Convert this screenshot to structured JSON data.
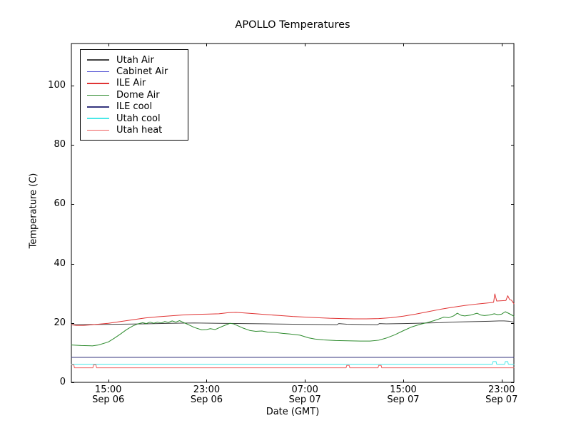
{
  "chart_data": {
    "type": "line",
    "title": "APOLLO Temperatures",
    "xlabel": "Date (GMT)",
    "ylabel": "Temperature (C)",
    "grid": false,
    "legend_position": "upper left",
    "background_color": "#ffffff",
    "axis_color": "#000000",
    "xlim_hours": [
      0,
      36
    ],
    "ylim": [
      0,
      114.2
    ],
    "yticks": [
      0,
      20,
      40,
      60,
      80,
      100
    ],
    "xticks": [
      {
        "hour": 3,
        "time": "15:00",
        "date": "Sep 06"
      },
      {
        "hour": 11,
        "time": "23:00",
        "date": "Sep 06"
      },
      {
        "hour": 19,
        "time": "07:00",
        "date": "Sep 07"
      },
      {
        "hour": 27,
        "time": "15:00",
        "date": "Sep 07"
      },
      {
        "hour": 35,
        "time": "23:00",
        "date": "Sep 07"
      }
    ],
    "x_axis_note": "x values are hours; hour 3 = 15:00 Sep 06 GMT, 8 hours between labeled ticks",
    "series": [
      {
        "name": "Utah Air",
        "color": "#404040",
        "points": [
          [
            0,
            19.4
          ],
          [
            2,
            19.5
          ],
          [
            4,
            19.6
          ],
          [
            6,
            19.7
          ],
          [
            8,
            19.9
          ],
          [
            10,
            20.0
          ],
          [
            12,
            19.9
          ],
          [
            14,
            19.8
          ],
          [
            16,
            19.7
          ],
          [
            18,
            19.6
          ],
          [
            20,
            19.5
          ],
          [
            21.6,
            19.4
          ],
          [
            21.75,
            19.8
          ],
          [
            22.4,
            19.6
          ],
          [
            23.5,
            19.5
          ],
          [
            24.9,
            19.4
          ],
          [
            25.05,
            19.8
          ],
          [
            25.6,
            19.7
          ],
          [
            27,
            19.8
          ],
          [
            28,
            19.9
          ],
          [
            29,
            20.0
          ],
          [
            30,
            20.1
          ],
          [
            31,
            20.3
          ],
          [
            32,
            20.4
          ],
          [
            33,
            20.5
          ],
          [
            34,
            20.6
          ],
          [
            34.8,
            20.7
          ],
          [
            35.2,
            20.7
          ],
          [
            35.6,
            20.6
          ],
          [
            36,
            20.3
          ]
        ]
      },
      {
        "name": "Cabinet Air",
        "color": "#4a4ad2",
        "points": [
          [
            0,
            8.4
          ],
          [
            36,
            8.4
          ]
        ]
      },
      {
        "name": "ILE Air",
        "color": "#e03434",
        "points": [
          [
            0,
            19.4
          ],
          [
            0.4,
            19.2
          ],
          [
            1,
            19.2
          ],
          [
            1.7,
            19.4
          ],
          [
            2.5,
            19.7
          ],
          [
            3,
            19.9
          ],
          [
            4,
            20.5
          ],
          [
            5,
            21.1
          ],
          [
            6,
            21.7
          ],
          [
            7,
            22.1
          ],
          [
            8,
            22.4
          ],
          [
            9,
            22.7
          ],
          [
            10,
            22.9
          ],
          [
            11,
            23.0
          ],
          [
            12,
            23.1
          ],
          [
            12.8,
            23.5
          ],
          [
            13.4,
            23.6
          ],
          [
            14,
            23.4
          ],
          [
            15,
            23.1
          ],
          [
            16,
            22.8
          ],
          [
            17,
            22.5
          ],
          [
            18,
            22.2
          ],
          [
            19,
            22.0
          ],
          [
            20,
            21.8
          ],
          [
            21,
            21.6
          ],
          [
            22,
            21.5
          ],
          [
            23,
            21.4
          ],
          [
            24,
            21.4
          ],
          [
            25,
            21.5
          ],
          [
            26,
            21.8
          ],
          [
            27,
            22.3
          ],
          [
            28,
            23.0
          ],
          [
            29,
            23.8
          ],
          [
            30,
            24.6
          ],
          [
            31,
            25.3
          ],
          [
            32,
            25.9
          ],
          [
            33,
            26.4
          ],
          [
            34,
            26.8
          ],
          [
            34.35,
            27.0
          ],
          [
            34.45,
            29.8
          ],
          [
            34.6,
            27.4
          ],
          [
            35,
            27.5
          ],
          [
            35.35,
            27.6
          ],
          [
            35.5,
            29.2
          ],
          [
            35.65,
            27.9
          ],
          [
            35.8,
            27.7
          ],
          [
            36,
            26.5
          ]
        ]
      },
      {
        "name": "Dome Air",
        "color": "#2e8b2e",
        "points": [
          [
            0,
            12.6
          ],
          [
            0.8,
            12.4
          ],
          [
            1.7,
            12.3
          ],
          [
            2.2,
            12.6
          ],
          [
            3,
            13.6
          ],
          [
            3.5,
            14.9
          ],
          [
            4,
            16.3
          ],
          [
            4.5,
            17.8
          ],
          [
            5,
            19.0
          ],
          [
            5.4,
            19.7
          ],
          [
            5.8,
            20.1
          ],
          [
            6.1,
            19.8
          ],
          [
            6.4,
            20.3
          ],
          [
            6.7,
            19.9
          ],
          [
            7,
            20.3
          ],
          [
            7.3,
            20.0
          ],
          [
            7.6,
            20.5
          ],
          [
            7.9,
            20.2
          ],
          [
            8.2,
            20.7
          ],
          [
            8.5,
            20.3
          ],
          [
            8.8,
            20.8
          ],
          [
            9.1,
            20.2
          ],
          [
            9.5,
            19.5
          ],
          [
            10,
            18.5
          ],
          [
            10.6,
            17.7
          ],
          [
            11,
            17.8
          ],
          [
            11.3,
            18.1
          ],
          [
            11.7,
            17.8
          ],
          [
            12.3,
            18.9
          ],
          [
            12.9,
            19.9
          ],
          [
            13.2,
            19.7
          ],
          [
            13.9,
            18.4
          ],
          [
            14.5,
            17.5
          ],
          [
            15,
            17.2
          ],
          [
            15.5,
            17.3
          ],
          [
            16,
            16.9
          ],
          [
            16.6,
            16.8
          ],
          [
            17.2,
            16.5
          ],
          [
            17.8,
            16.3
          ],
          [
            18.6,
            15.9
          ],
          [
            19.3,
            15.0
          ],
          [
            19.8,
            14.6
          ],
          [
            20.5,
            14.3
          ],
          [
            21.5,
            14.1
          ],
          [
            22.5,
            14.0
          ],
          [
            23.5,
            13.9
          ],
          [
            24.3,
            13.9
          ],
          [
            25,
            14.2
          ],
          [
            25.6,
            14.9
          ],
          [
            26.3,
            16.0
          ],
          [
            27,
            17.4
          ],
          [
            27.7,
            18.7
          ],
          [
            28.4,
            19.6
          ],
          [
            29,
            20.2
          ],
          [
            29.5,
            20.8
          ],
          [
            30,
            21.5
          ],
          [
            30.3,
            22.0
          ],
          [
            30.7,
            21.8
          ],
          [
            31.1,
            22.4
          ],
          [
            31.4,
            23.3
          ],
          [
            31.7,
            22.6
          ],
          [
            32,
            22.4
          ],
          [
            32.5,
            22.7
          ],
          [
            33,
            23.3
          ],
          [
            33.3,
            22.7
          ],
          [
            33.6,
            22.5
          ],
          [
            34,
            22.7
          ],
          [
            34.4,
            23.1
          ],
          [
            34.7,
            22.8
          ],
          [
            35,
            23.0
          ],
          [
            35.3,
            23.8
          ],
          [
            35.6,
            23.2
          ],
          [
            36,
            22.3
          ]
        ]
      },
      {
        "name": "ILE cool",
        "color": "#35357e",
        "points": [
          [
            0,
            8.4
          ],
          [
            36,
            8.4
          ]
        ]
      },
      {
        "name": "Utah cool",
        "color": "#4ae8e8",
        "points": [
          [
            0,
            6.1
          ],
          [
            34.25,
            6.1
          ],
          [
            34.3,
            7.0
          ],
          [
            34.55,
            7.0
          ],
          [
            34.6,
            6.1
          ],
          [
            35.25,
            6.1
          ],
          [
            35.3,
            7.0
          ],
          [
            35.5,
            7.0
          ],
          [
            35.55,
            6.1
          ],
          [
            36,
            6.1
          ]
        ]
      },
      {
        "name": "Utah heat",
        "color": "#ef5f5f",
        "points": [
          [
            0,
            5.9
          ],
          [
            0.2,
            5.9
          ],
          [
            0.25,
            4.9
          ],
          [
            1.75,
            4.9
          ],
          [
            1.8,
            5.9
          ],
          [
            2.0,
            5.9
          ],
          [
            2.05,
            4.9
          ],
          [
            22.35,
            4.9
          ],
          [
            22.4,
            5.7
          ],
          [
            22.6,
            5.7
          ],
          [
            22.65,
            4.9
          ],
          [
            24.95,
            4.9
          ],
          [
            25.0,
            5.7
          ],
          [
            25.2,
            5.7
          ],
          [
            25.25,
            4.9
          ],
          [
            36,
            4.9
          ]
        ]
      }
    ]
  }
}
